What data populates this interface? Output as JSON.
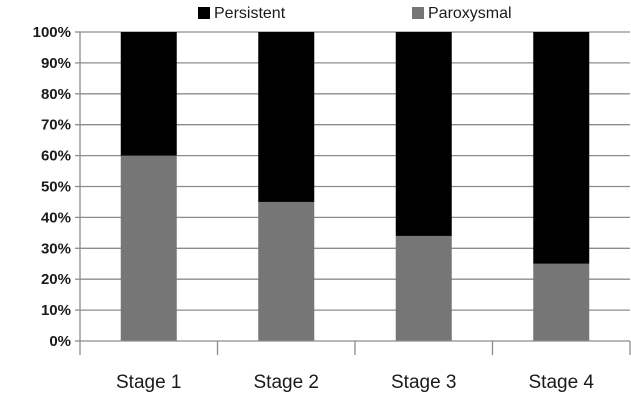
{
  "chart_data": {
    "type": "bar",
    "stacked": true,
    "percent": true,
    "categories": [
      "Stage 1",
      "Stage 2",
      "Stage 3",
      "Stage 4"
    ],
    "series": [
      {
        "name": "Paroxysmal",
        "values": [
          60,
          45,
          34,
          25
        ],
        "color": "#767676"
      },
      {
        "name": "Persistent",
        "values": [
          40,
          55,
          66,
          75
        ],
        "color": "#000000"
      }
    ],
    "ylim": [
      0,
      100
    ],
    "yticks": [
      "0%",
      "10%",
      "20%",
      "30%",
      "40%",
      "50%",
      "60%",
      "70%",
      "80%",
      "90%",
      "100%"
    ],
    "grid": true,
    "legend": {
      "placement": "top",
      "entries": [
        "Persistent",
        "Paroxysmal"
      ]
    },
    "title": "",
    "xlabel": "",
    "ylabel": ""
  }
}
